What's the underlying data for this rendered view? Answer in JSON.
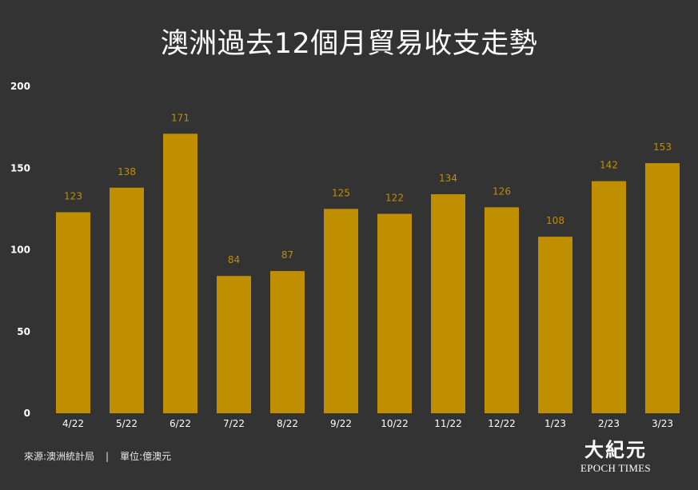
{
  "chart_data": {
    "type": "bar",
    "title": "澳洲過去12個月貿易收支走勢",
    "categories": [
      "4/22",
      "5/22",
      "6/22",
      "7/22",
      "8/22",
      "9/22",
      "10/22",
      "11/22",
      "12/22",
      "1/23",
      "2/23",
      "3/23"
    ],
    "values": [
      123,
      138,
      171,
      84,
      87,
      125,
      122,
      134,
      126,
      108,
      142,
      153
    ],
    "ylim": [
      0,
      200
    ],
    "yticks": [
      0,
      50,
      100,
      150,
      200
    ],
    "grid": false,
    "bar_color": "#bf8f00",
    "label_color": "#bf8f00",
    "background": "#333333"
  },
  "footer": {
    "source": "來源:澳洲統計局",
    "separator": "|",
    "unit": "單位:億澳元"
  },
  "logo": {
    "chinese": "大紀元",
    "english": "EPOCH TIMES"
  }
}
